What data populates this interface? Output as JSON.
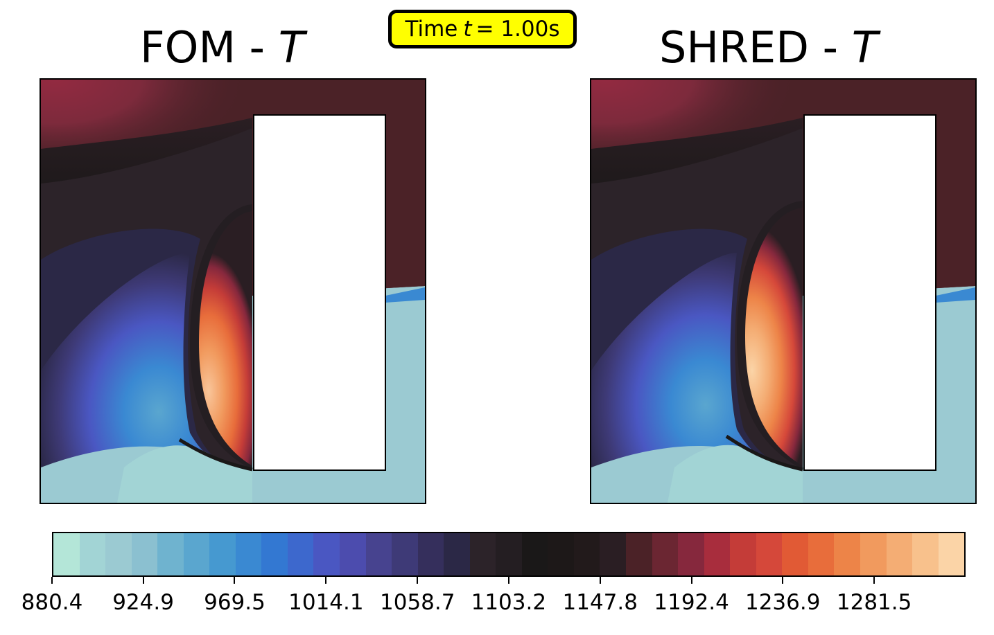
{
  "chart_data": [
    {
      "type": "heatmap",
      "title": "FOM - T",
      "title_text": "FOM - ",
      "title_symbol": "T",
      "field": "temperature",
      "obstacle": "white rectangle (solid body) in right half of domain",
      "axes_visible": false
    },
    {
      "type": "heatmap",
      "title": "SHRED - T",
      "title_text": "SHRED - ",
      "title_symbol": "T",
      "field": "temperature",
      "obstacle": "white rectangle (solid body) in right half of domain",
      "axes_visible": false
    }
  ],
  "time_label": {
    "prefix": "Time",
    "symbol": "t",
    "value": "= 1.00s"
  },
  "colorbar": {
    "orientation": "horizontal",
    "vmin": 880.4,
    "vmax": 1326.1,
    "ticks": [
      880.4,
      924.9,
      969.5,
      1014.1,
      1058.7,
      1103.2,
      1147.8,
      1192.4,
      1236.9,
      1281.5
    ],
    "tick_labels": [
      "880.4",
      "924.9",
      "969.5",
      "1014.1",
      "1058.7",
      "1103.2",
      "1147.8",
      "1192.4",
      "1236.9",
      "1281.5"
    ],
    "levels": [
      "#b4e6d8",
      "#a2d4d5",
      "#9bcad2",
      "#8bc0d0",
      "#6fb3cf",
      "#5aa6cf",
      "#4699d0",
      "#3a89d2",
      "#3378d2",
      "#3d68cd",
      "#4a57c2",
      "#4c4cae",
      "#47438f",
      "#3e3a77",
      "#352f5c",
      "#2b2846",
      "#2c2329",
      "#241e22",
      "#1a1818",
      "#1d1818",
      "#221a1b",
      "#2a1e23",
      "#4b2227",
      "#6b2632",
      "#86283d",
      "#a82d3d",
      "#c43c38",
      "#d5483a",
      "#e15a35",
      "#e86d3b",
      "#ed8448",
      "#f19a5e",
      "#f4ad74",
      "#f8c18c",
      "#fbd4a7"
    ]
  }
}
